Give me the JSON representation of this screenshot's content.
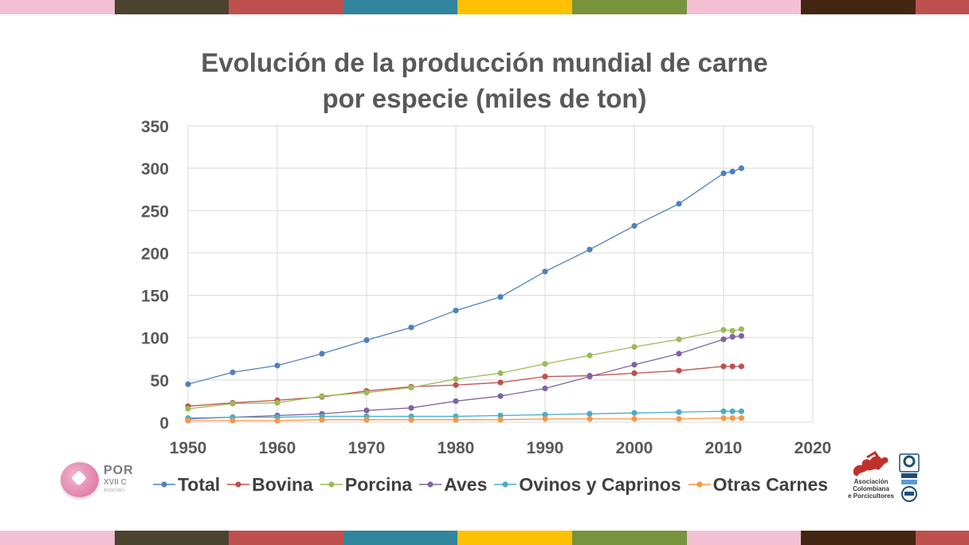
{
  "colors": {
    "stripes": [
      "#f2c0d2",
      "#4a432e",
      "#c0504d",
      "#31859c",
      "#ffc000",
      "#77933c",
      "#f2c0d2",
      "#432611",
      "#c0504d"
    ],
    "grid": "#d9d9d9",
    "axis_text": "#595959"
  },
  "logos": {
    "left_line1": "POR",
    "left_line2": "XVII C",
    "left_line3": "Asociaci",
    "right_org_line1": "Asociación",
    "right_org_line2": "Colombiana",
    "right_org_line3": "e Porcicultores",
    "right_cert_icon": "certification-seal-icon"
  },
  "chart_data": {
    "type": "line",
    "title": "Evolución de la producción mundial de carne por especie (miles de ton)",
    "title_lines": [
      "Evolución de la producción mundial de carne",
      "por especie (miles de ton)"
    ],
    "xlabel": "",
    "ylabel": "",
    "xlim": [
      1950,
      2020
    ],
    "ylim": [
      0,
      350
    ],
    "x_ticks": [
      1950,
      1960,
      1970,
      1980,
      1990,
      2000,
      2010,
      2020
    ],
    "y_ticks": [
      0,
      50,
      100,
      150,
      200,
      250,
      300,
      350
    ],
    "grid": true,
    "legend_position": "bottom",
    "x": [
      1950,
      1955,
      1960,
      1965,
      1970,
      1975,
      1980,
      1985,
      1990,
      1995,
      2000,
      2005,
      2010,
      2011,
      2012
    ],
    "series": [
      {
        "name": "Total",
        "color": "#4f81bd",
        "values": [
          45,
          59,
          67,
          81,
          97,
          112,
          132,
          148,
          178,
          204,
          232,
          258,
          294,
          296,
          300
        ]
      },
      {
        "name": "Bovina",
        "color": "#c0504d",
        "values": [
          19,
          23,
          26,
          30,
          37,
          42,
          44,
          47,
          54,
          55,
          58,
          61,
          66,
          66,
          66
        ]
      },
      {
        "name": "Porcina",
        "color": "#9bbb59",
        "values": [
          16,
          22,
          23,
          31,
          35,
          41,
          51,
          58,
          69,
          79,
          89,
          98,
          109,
          108,
          110
        ]
      },
      {
        "name": "Aves",
        "color": "#8064a2",
        "values": [
          4,
          6,
          8,
          10,
          14,
          17,
          25,
          31,
          40,
          54,
          68,
          81,
          98,
          101,
          102
        ]
      },
      {
        "name": "Ovinos y Caprinos",
        "color": "#4bacc6",
        "values": [
          5,
          6,
          6,
          7,
          7,
          7,
          7,
          8,
          9,
          10,
          11,
          12,
          13,
          13,
          13
        ]
      },
      {
        "name": "Otras Carnes",
        "color": "#f79646",
        "values": [
          2,
          2,
          2,
          3,
          3,
          3,
          3,
          3,
          4,
          4,
          4,
          4,
          5,
          5,
          5
        ]
      }
    ]
  }
}
